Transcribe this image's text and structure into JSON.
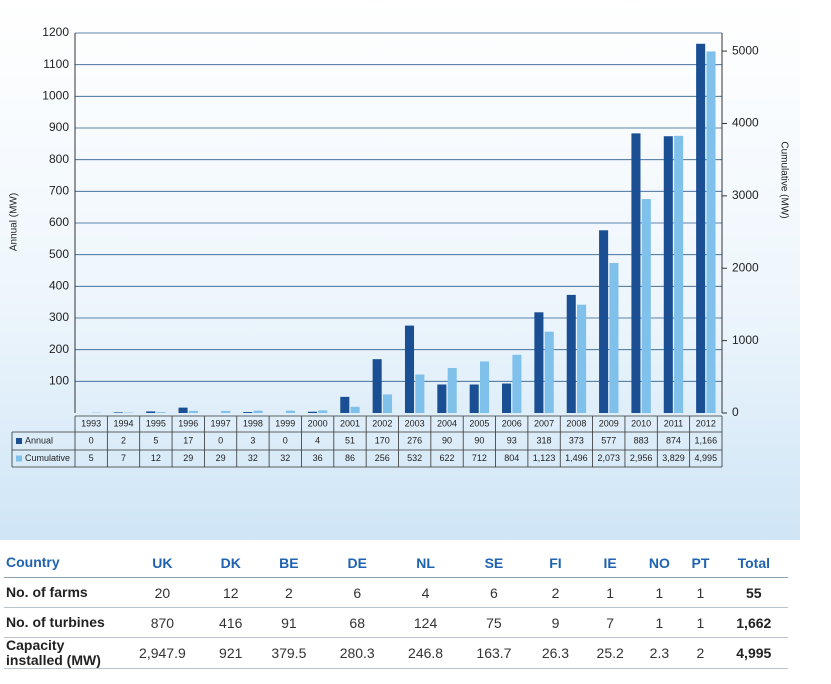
{
  "chart_data": {
    "type": "bar",
    "ylabel": "Annual (MW)",
    "y2label": "Cumulative (MW)",
    "categories": [
      "1993",
      "1994",
      "1995",
      "1996",
      "1997",
      "1998",
      "1999",
      "2000",
      "2001",
      "2002",
      "2003",
      "2004",
      "2005",
      "2006",
      "2007",
      "2008",
      "2009",
      "2010",
      "2011",
      "2012"
    ],
    "series": [
      {
        "name": "Annual",
        "color": "#1b4f93",
        "values": [
          0,
          2,
          5,
          17,
          0,
          3,
          0,
          4,
          51,
          170,
          276,
          90,
          90,
          93,
          318,
          373,
          577,
          883,
          874,
          1166
        ],
        "value_labels": [
          "0",
          "2",
          "5",
          "17",
          "0",
          "3",
          "0",
          "4",
          "51",
          "170",
          "276",
          "90",
          "90",
          "93",
          "318",
          "373",
          "577",
          "883",
          "874",
          "1,166"
        ]
      },
      {
        "name": "Cumulative",
        "color": "#7fc1ea",
        "axis": "y2",
        "values": [
          5,
          7,
          12,
          29,
          29,
          32,
          32,
          36,
          86,
          256,
          532,
          622,
          712,
          804,
          1123,
          1496,
          2073,
          2956,
          3829,
          4995
        ],
        "value_labels": [
          "5",
          "7",
          "12",
          "29",
          "29",
          "32",
          "32",
          "36",
          "86",
          "256",
          "532",
          "622",
          "712",
          "804",
          "1,123",
          "1,496",
          "2,073",
          "2,956",
          "3,829",
          "4,995"
        ]
      }
    ],
    "ylim": [
      0,
      1200
    ],
    "yticks": [
      100,
      200,
      300,
      400,
      500,
      600,
      700,
      800,
      900,
      1000,
      1100,
      1200
    ],
    "y2lim": [
      0,
      5250
    ],
    "y2ticks": [
      0,
      1000,
      2000,
      3000,
      4000,
      5000
    ],
    "grid": true
  },
  "table": {
    "rows": [
      [
        "Country",
        "UK",
        "DK",
        "BE",
        "DE",
        "NL",
        "SE",
        "FI",
        "IE",
        "NO",
        "PT",
        "Total"
      ],
      [
        "No. of farms",
        "20",
        "12",
        "2",
        "6",
        "4",
        "6",
        "2",
        "1",
        "1",
        "1",
        "55"
      ],
      [
        "No. of turbines",
        "870",
        "416",
        "91",
        "68",
        "124",
        "75",
        "9",
        "7",
        "1",
        "1",
        "1,662"
      ],
      [
        "Capacity installed (MW)",
        "2,947.9",
        "921",
        "379.5",
        "280.3",
        "246.8",
        "163.7",
        "26.3",
        "25.2",
        "2.3",
        "2",
        "4,995"
      ]
    ]
  }
}
